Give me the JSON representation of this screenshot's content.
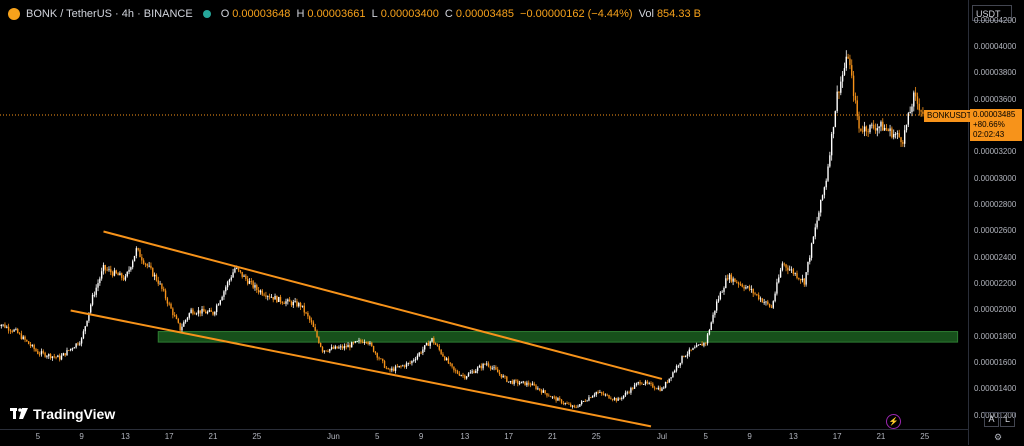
{
  "header": {
    "symbol": "BONK / TetherUS · 4h · BINANCE",
    "open_label": "O",
    "open": "0.00003648",
    "high_label": "H",
    "high": "0.00003661",
    "low_label": "L",
    "low": "0.00003400",
    "close_label": "C",
    "close": "0.00003485",
    "change": "−0.00000162 (−4.44%)",
    "vol_label": "Vol",
    "vol": "854.33 B"
  },
  "price_axis": {
    "unit": "USDT",
    "ticks": [
      "0.00004200",
      "0.00004000",
      "0.00003800",
      "0.00003600",
      "0.00003400",
      "0.00003200",
      "0.00003000",
      "0.00002800",
      "0.00002600",
      "0.00002400",
      "0.00002200",
      "0.00002000",
      "0.00001800",
      "0.00001600",
      "0.00001400",
      "0.00001200"
    ],
    "symbol_tag": "BONKUSDT",
    "last_price": "0.00003485",
    "last_change": "+80.66%",
    "countdown": "02:02:43"
  },
  "time_axis": {
    "labels": [
      "5",
      "9",
      "13",
      "17",
      "21",
      "25",
      "Jun",
      "5",
      "9",
      "13",
      "17",
      "21",
      "25",
      "Jul",
      "5",
      "9",
      "13",
      "17",
      "21",
      "25"
    ]
  },
  "footer": {
    "brand": "TradingView",
    "btn_auto": "A",
    "btn_log": "L"
  },
  "colors": {
    "up": "#ffffff",
    "down": "#f7931a",
    "trendline": "#f7931a",
    "zone": "#1b5e20",
    "background": "#000000"
  },
  "chart_data": {
    "type": "candlestick",
    "interval": "4h",
    "ylim": [
      1.1e-05,
      4.32e-05
    ],
    "close_path": [
      [
        "May 1",
        1.92e-05
      ],
      [
        "May 3",
        1.84e-05
      ],
      [
        "May 5",
        1.68e-05
      ],
      [
        "May 7",
        1.64e-05
      ],
      [
        "May 9",
        1.78e-05
      ],
      [
        "May 10",
        2.1e-05
      ],
      [
        "May 11",
        2.32e-05
      ],
      [
        "May 13",
        2.24e-05
      ],
      [
        "May 14",
        2.46e-05
      ],
      [
        "May 16",
        2.22e-05
      ],
      [
        "May 18",
        1.86e-05
      ],
      [
        "May 19",
        2e-05
      ],
      [
        "May 21",
        1.98e-05
      ],
      [
        "May 23",
        2.32e-05
      ],
      [
        "May 25",
        2.16e-05
      ],
      [
        "May 27",
        2.08e-05
      ],
      [
        "May 29",
        2.04e-05
      ],
      [
        "May 30",
        1.9e-05
      ],
      [
        "May 31",
        1.7e-05
      ],
      [
        "Jun 2",
        1.72e-05
      ],
      [
        "Jun 4",
        1.78e-05
      ],
      [
        "Jun 6",
        1.54e-05
      ],
      [
        "Jun 8",
        1.6e-05
      ],
      [
        "Jun 10",
        1.78e-05
      ],
      [
        "Jun 12",
        1.54e-05
      ],
      [
        "Jun 13",
        1.5e-05
      ],
      [
        "Jun 15",
        1.6e-05
      ],
      [
        "Jun 17",
        1.46e-05
      ],
      [
        "Jun 19",
        1.44e-05
      ],
      [
        "Jun 21",
        1.34e-05
      ],
      [
        "Jun 23",
        1.26e-05
      ],
      [
        "Jun 25",
        1.38e-05
      ],
      [
        "Jun 27",
        1.32e-05
      ],
      [
        "Jun 29",
        1.46e-05
      ],
      [
        "Jul 1",
        1.4e-05
      ],
      [
        "Jul 3",
        1.66e-05
      ],
      [
        "Jul 5",
        1.76e-05
      ],
      [
        "Jul 6",
        2.06e-05
      ],
      [
        "Jul 7",
        2.26e-05
      ],
      [
        "Jul 9",
        2.16e-05
      ],
      [
        "Jul 11",
        2.02e-05
      ],
      [
        "Jul 12",
        2.36e-05
      ],
      [
        "Jul 14",
        2.22e-05
      ],
      [
        "Jul 15",
        2.62e-05
      ],
      [
        "Jul 16",
        3e-05
      ],
      [
        "Jul 17",
        3.64e-05
      ],
      [
        "Jul 18",
        3.94e-05
      ],
      [
        "Jul 19",
        3.38e-05
      ],
      [
        "Jul 21",
        3.4e-05
      ],
      [
        "Jul 23",
        3.3e-05
      ],
      [
        "Jul 24",
        3.62e-05
      ],
      [
        "Jul 25",
        3.48e-05
      ]
    ],
    "last_close": 3.485e-05,
    "horizontal_zone": [
      1.76e-05,
      1.84e-05
    ],
    "descending_channel": {
      "upper": [
        [
          "May 11",
          2.6e-05
        ],
        [
          "Jul 1",
          1.48e-05
        ]
      ],
      "lower": [
        [
          "May 8",
          2e-05
        ],
        [
          "Jun 30",
          1.12e-05
        ]
      ]
    }
  }
}
